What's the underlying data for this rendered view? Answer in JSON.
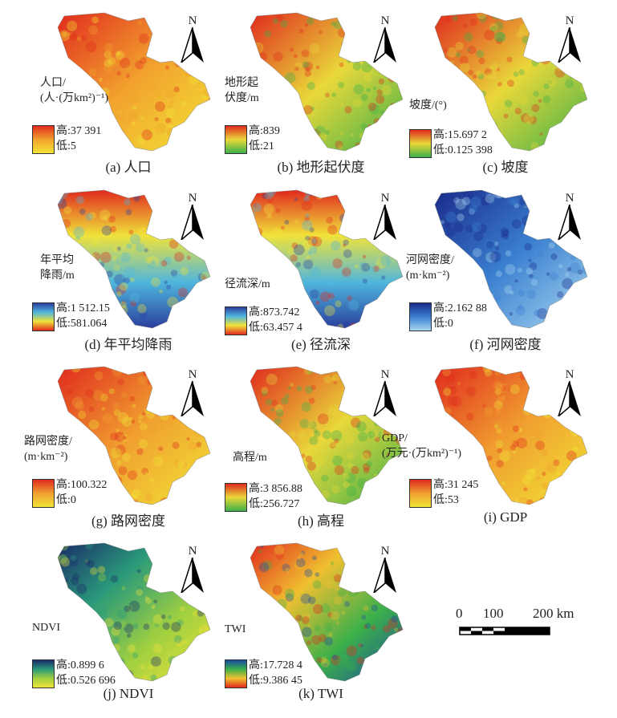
{
  "north_label": "N",
  "panels": [
    {
      "caption": "(a) 人口",
      "legend_title": "人口/\n(人·(万km²)⁻¹)",
      "high": "高:37 391",
      "low": "低:5",
      "ramp": [
        "#e02a1e",
        "#f2a22e",
        "#f2e436"
      ]
    },
    {
      "caption": "(b) 地形起伏度",
      "legend_title": "地形起\n伏度/m",
      "high": "高:839",
      "low": "低:21",
      "ramp": [
        "#e02a1e",
        "#e9d83a",
        "#3cb04a"
      ]
    },
    {
      "caption": "(c) 坡度",
      "legend_title": "坡度/(°)",
      "high": "高:15.697 2",
      "low": "低:0.125 398",
      "ramp": [
        "#e02a1e",
        "#e9d83a",
        "#3cb04a"
      ]
    },
    {
      "caption": "(d) 年平均降雨",
      "legend_title": "年平均\n降雨/m",
      "high": "高:1 512.15",
      "low": "低:581.064",
      "ramp": [
        "#2a3f9e",
        "#4fb6dd",
        "#f0e33a",
        "#e02a1e"
      ]
    },
    {
      "caption": "(e) 径流深",
      "legend_title": "径流深/m",
      "high": "高:873.742",
      "low": "低:63.457 4",
      "ramp": [
        "#2a3f9e",
        "#4fb6dd",
        "#f0e33a",
        "#e02a1e"
      ]
    },
    {
      "caption": "(f) 河网密度",
      "legend_title": "河网密度/\n(m·km⁻²)",
      "high": "高:2.162 88",
      "low": "低:0",
      "ramp": [
        "#1a2a8a",
        "#3a7fd0",
        "#a8d8f0"
      ]
    },
    {
      "caption": "(g) 路网密度",
      "legend_title": "路网密度/\n(m·km⁻²)",
      "high": "高:100.322",
      "low": "低:0",
      "ramp": [
        "#e02a1e",
        "#f0a030",
        "#f2e436"
      ]
    },
    {
      "caption": "(h) 高程",
      "legend_title": "高程/m",
      "high": "高:3 856.88",
      "low": "低:256.727",
      "ramp": [
        "#e02a1e",
        "#e9d83a",
        "#3cb04a"
      ]
    },
    {
      "caption": "(i) GDP",
      "legend_title": "GDP/\n(万元·(万km²)⁻¹)",
      "high": "高:31 245",
      "low": "低:53",
      "ramp": [
        "#e02a1e",
        "#f0a030",
        "#f2e436"
      ]
    },
    {
      "caption": "(j) NDVI",
      "legend_title": "NDVI",
      "high": "高:0.899 6",
      "low": "低:0.526 696",
      "ramp": [
        "#1a2a6a",
        "#2a9a7a",
        "#a0d040",
        "#f0e33a"
      ]
    },
    {
      "caption": "(k) TWI",
      "legend_title": "TWI",
      "high": "高:17.728 4",
      "low": "低:9.386 45",
      "ramp": [
        "#1a4aa0",
        "#3cb04a",
        "#f0c030",
        "#e02a1e"
      ]
    }
  ],
  "scale_bar": {
    "labels": [
      "0",
      "100",
      "200 km"
    ]
  }
}
